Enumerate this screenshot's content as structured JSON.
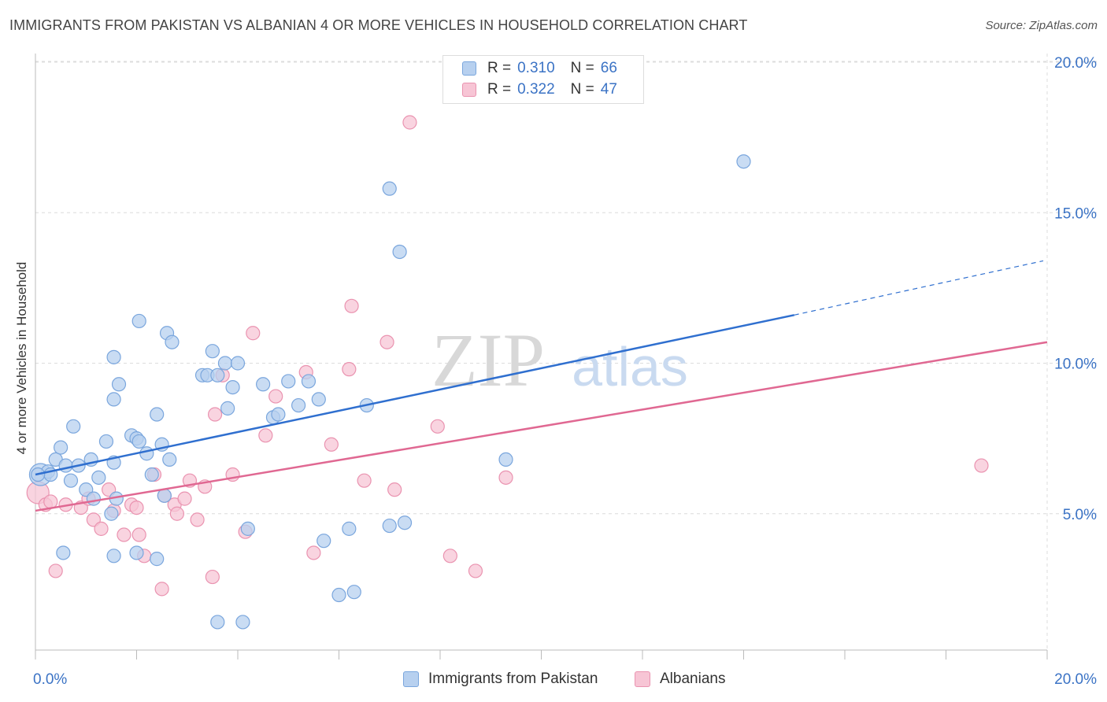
{
  "title": "IMMIGRANTS FROM PAKISTAN VS ALBANIAN 4 OR MORE VEHICLES IN HOUSEHOLD CORRELATION CHART",
  "source": "Source: ZipAtlas.com",
  "watermark": {
    "zip": "ZIP",
    "atlas": "atlas"
  },
  "legend_top": [
    {
      "r_label": "R =",
      "r_value": "0.310",
      "n_label": "N =",
      "n_value": "66"
    },
    {
      "r_label": "R =",
      "r_value": "0.322",
      "n_label": "N =",
      "n_value": "47"
    }
  ],
  "colors": {
    "blue_fill": "#b7d0ef",
    "blue_stroke": "#7aa6dd",
    "blue_line": "#2f6fcf",
    "pink_fill": "#f7c5d5",
    "pink_stroke": "#ea93b0",
    "pink_line": "#e06892",
    "tick_label": "#3b73c5",
    "grid": "#dcdcdc"
  },
  "chart_data": {
    "type": "scatter",
    "title": "IMMIGRANTS FROM PAKISTAN VS ALBANIAN 4 OR MORE VEHICLES IN HOUSEHOLD CORRELATION CHART",
    "xlabel": "",
    "ylabel": "4 or more Vehicles in Household",
    "xlim": [
      0,
      20
    ],
    "ylim": [
      0,
      20.5
    ],
    "x_tick_labels": [
      "0.0%",
      "20.0%"
    ],
    "y_ticks": [
      5,
      10,
      15,
      20
    ],
    "y_tick_labels": [
      "5.0%",
      "10.0%",
      "15.0%",
      "20.0%"
    ],
    "series": [
      {
        "name": "Immigrants from Pakistan",
        "color": "#b7d0ef",
        "R": 0.31,
        "N": 66,
        "trend": {
          "x": [
            0,
            15
          ],
          "y": [
            6.3,
            11.6
          ],
          "dashed_to": {
            "x": 20,
            "y": 13.4
          }
        },
        "points": [
          [
            0.1,
            6.3
          ],
          [
            0.25,
            6.4
          ],
          [
            0.3,
            6.3
          ],
          [
            0.4,
            6.8
          ],
          [
            0.5,
            7.2
          ],
          [
            0.6,
            6.6
          ],
          [
            0.7,
            6.1
          ],
          [
            0.75,
            7.9
          ],
          [
            0.85,
            6.6
          ],
          [
            1.1,
            6.8
          ],
          [
            1.0,
            5.8
          ],
          [
            1.25,
            6.2
          ],
          [
            1.15,
            5.5
          ],
          [
            1.4,
            7.4
          ],
          [
            1.5,
            5.0
          ],
          [
            1.55,
            6.7
          ],
          [
            1.6,
            5.5
          ],
          [
            1.55,
            3.6
          ],
          [
            1.9,
            7.6
          ],
          [
            2.0,
            7.5
          ],
          [
            2.05,
            7.4
          ],
          [
            2.2,
            7.0
          ],
          [
            2.3,
            6.3
          ],
          [
            2.4,
            8.3
          ],
          [
            2.5,
            7.3
          ],
          [
            2.55,
            5.6
          ],
          [
            2.65,
            6.8
          ],
          [
            1.55,
            8.8
          ],
          [
            1.65,
            9.3
          ],
          [
            2.0,
            3.7
          ],
          [
            2.4,
            3.5
          ],
          [
            1.55,
            10.2
          ],
          [
            2.05,
            11.4
          ],
          [
            2.6,
            11.0
          ],
          [
            2.7,
            10.7
          ],
          [
            3.3,
            9.6
          ],
          [
            3.4,
            9.6
          ],
          [
            3.5,
            10.4
          ],
          [
            3.6,
            9.6
          ],
          [
            3.75,
            10.0
          ],
          [
            3.8,
            8.5
          ],
          [
            3.9,
            9.2
          ],
          [
            4.0,
            10.0
          ],
          [
            4.2,
            4.5
          ],
          [
            4.5,
            9.3
          ],
          [
            4.7,
            8.2
          ],
          [
            4.8,
            8.3
          ],
          [
            5.0,
            9.4
          ],
          [
            5.2,
            8.6
          ],
          [
            5.4,
            9.4
          ],
          [
            5.6,
            8.8
          ],
          [
            5.7,
            4.1
          ],
          [
            6.0,
            2.3
          ],
          [
            6.2,
            4.5
          ],
          [
            6.3,
            2.4
          ],
          [
            6.55,
            8.6
          ],
          [
            7.0,
            4.6
          ],
          [
            7.0,
            15.8
          ],
          [
            7.2,
            13.7
          ],
          [
            7.3,
            4.7
          ],
          [
            9.3,
            6.8
          ],
          [
            14.0,
            16.7
          ],
          [
            3.6,
            1.4
          ],
          [
            4.1,
            1.4
          ],
          [
            0.55,
            3.7
          ],
          [
            0.05,
            6.3
          ]
        ]
      },
      {
        "name": "Albanians",
        "color": "#f7c5d5",
        "R": 0.322,
        "N": 47,
        "trend": {
          "x": [
            0,
            20
          ],
          "y": [
            5.1,
            10.7
          ]
        },
        "points": [
          [
            0.05,
            5.7
          ],
          [
            0.2,
            5.3
          ],
          [
            0.4,
            3.1
          ],
          [
            0.6,
            5.3
          ],
          [
            0.9,
            5.2
          ],
          [
            1.05,
            5.5
          ],
          [
            1.15,
            4.8
          ],
          [
            1.3,
            4.5
          ],
          [
            1.45,
            5.8
          ],
          [
            1.55,
            5.1
          ],
          [
            1.75,
            4.3
          ],
          [
            1.9,
            5.3
          ],
          [
            2.0,
            5.2
          ],
          [
            2.05,
            4.3
          ],
          [
            2.15,
            3.6
          ],
          [
            2.35,
            6.3
          ],
          [
            2.5,
            2.5
          ],
          [
            2.55,
            5.6
          ],
          [
            2.75,
            5.3
          ],
          [
            2.8,
            5.0
          ],
          [
            2.95,
            5.5
          ],
          [
            3.05,
            6.1
          ],
          [
            3.2,
            4.8
          ],
          [
            3.35,
            5.9
          ],
          [
            3.5,
            2.9
          ],
          [
            3.55,
            8.3
          ],
          [
            3.7,
            9.6
          ],
          [
            3.9,
            6.3
          ],
          [
            4.15,
            4.4
          ],
          [
            4.3,
            11.0
          ],
          [
            4.55,
            7.6
          ],
          [
            4.75,
            8.9
          ],
          [
            5.35,
            9.7
          ],
          [
            5.5,
            3.7
          ],
          [
            5.85,
            7.3
          ],
          [
            6.2,
            9.8
          ],
          [
            6.25,
            11.9
          ],
          [
            6.5,
            6.1
          ],
          [
            6.95,
            10.7
          ],
          [
            7.1,
            5.8
          ],
          [
            7.4,
            18.0
          ],
          [
            7.95,
            7.9
          ],
          [
            8.2,
            3.6
          ],
          [
            8.7,
            3.1
          ],
          [
            9.3,
            6.2
          ],
          [
            18.7,
            6.6
          ],
          [
            0.3,
            5.4
          ]
        ]
      }
    ]
  },
  "legend_bottom": [
    {
      "label": "Immigrants from Pakistan"
    },
    {
      "label": "Albanians"
    }
  ]
}
